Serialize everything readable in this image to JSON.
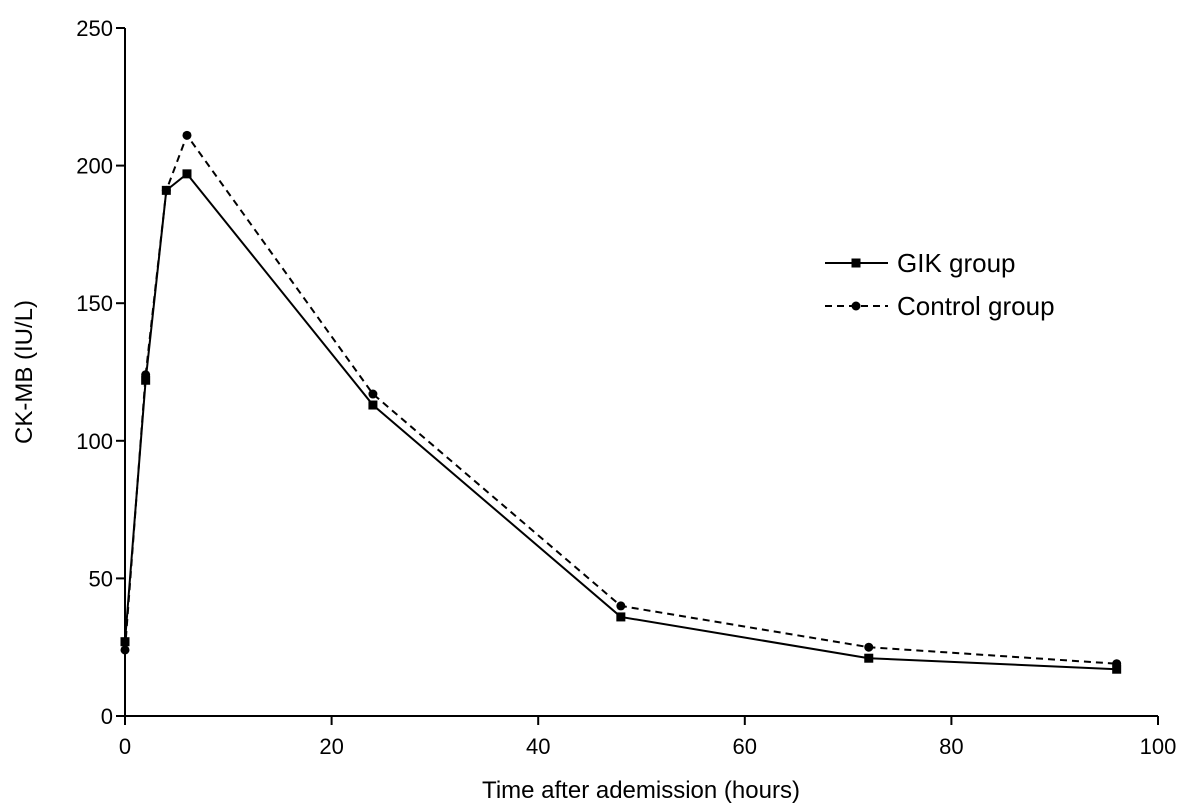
{
  "chart_data": {
    "type": "line",
    "title": "",
    "xlabel": "Time after ademission (hours)",
    "ylabel": "CK-MB (IU/L)",
    "xlim": [
      0,
      100
    ],
    "ylim": [
      0,
      250
    ],
    "xticks": [
      0,
      20,
      40,
      60,
      80,
      100
    ],
    "yticks": [
      0,
      50,
      100,
      150,
      200,
      250
    ],
    "grid": false,
    "legend_position": "right",
    "series": [
      {
        "name": "GIK group",
        "marker": "square",
        "line_style": "solid",
        "color": "#000000",
        "x": [
          0,
          2,
          4,
          6,
          24,
          48,
          72,
          96
        ],
        "y": [
          27,
          122,
          191,
          197,
          113,
          36,
          21,
          17
        ]
      },
      {
        "name": "Control group",
        "marker": "circle",
        "line_style": "dashed",
        "color": "#000000",
        "x": [
          0,
          2,
          4,
          6,
          24,
          48,
          72,
          96
        ],
        "y": [
          24,
          124,
          191,
          211,
          117,
          40,
          25,
          19
        ]
      }
    ]
  }
}
